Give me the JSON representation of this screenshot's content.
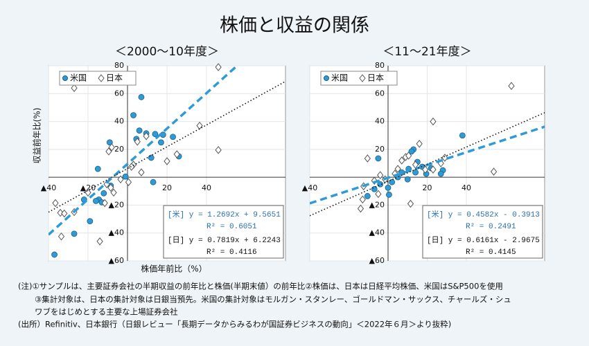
{
  "title": "株価と収益の関係",
  "notes": [
    "(注)①サンプルは、主要証券会社の半期収益の前年比と株価(半期末値）の前年比②株価は、日本は日経平均株価、米国はS&P500を使用",
    "③集計対象は、日本の集計対象は日銀当預先。米国の集計対象はモルガン・スタンレー、ゴールドマン・サックス、チャールズ・シュ",
    "ワブをはじめとする主要な上場証券会社",
    "(出所）Refinitiv、日本銀行（日銀レビュー「長期データからみるわが国証券ビジネスの動向」＜2022年６月＞より抜粋)"
  ],
  "chart_data": [
    {
      "type": "scatter",
      "title": "＜2000〜10年度＞",
      "x_label": "株価年前比（%）",
      "y_label": "収益前年比(%)",
      "grid": true,
      "xlim": [
        -40,
        80
      ],
      "ylim": [
        -60,
        80
      ],
      "xticks": [
        {
          "value": -40,
          "label": "▲40"
        },
        {
          "value": -20,
          "label": "▲20"
        },
        20,
        40
      ],
      "yticks": [
        {
          "value": -60,
          "label": "▲60"
        },
        {
          "value": -40,
          "label": "▲40"
        },
        {
          "value": -20,
          "label": "▲20"
        },
        20,
        40,
        60,
        80
      ],
      "series": [
        {
          "name": "米国",
          "color": "#2e9bd6",
          "marker": "circle",
          "x": [
            7,
            3,
            6,
            -9,
            9.5,
            14,
            17,
            23,
            4.5,
            18,
            26,
            -15,
            -1,
            12,
            13,
            -14.5,
            -13,
            -22,
            -19,
            -27,
            -37,
            -8.5,
            -12,
            -16
          ],
          "values": [
            57.5,
            44.5,
            33.5,
            25,
            31.5,
            31,
            25,
            29,
            27.5,
            30.5,
            15,
            6,
            0.5,
            14,
            -3.5,
            -16,
            -18,
            -16,
            -31.5,
            -40.5,
            -55.5,
            -6,
            -11.5,
            -17
          ],
          "trend": {
            "slope": 1.2692,
            "intercept": 9.5651,
            "style": "dashed",
            "equation": "[米] y = 1.2692x + 9.5651",
            "r2": "R² = 0.6051"
          }
        },
        {
          "name": "日本",
          "color": "#ffffff",
          "marker": "diamond",
          "x": [
            -27,
            46,
            46,
            36.5,
            25,
            20,
            9.5,
            5,
            -9.5,
            -8,
            3,
            7,
            2,
            0.5,
            -8.5,
            -10.5,
            -20,
            -11.5,
            -36.5,
            -34,
            -27,
            -32,
            -33.5,
            -14,
            -7,
            -3.5
          ],
          "values": [
            64,
            79,
            19.5,
            37,
            16.5,
            11.5,
            29.5,
            25.5,
            18.5,
            21.5,
            9,
            3.5,
            7.5,
            -3.5,
            -7.5,
            -5,
            -11,
            -18.5,
            -18.5,
            -25.5,
            -25,
            -26,
            -42.5,
            -46,
            -11,
            -1.5
          ],
          "trend": {
            "slope": 0.7819,
            "intercept": 6.2243,
            "style": "dotted",
            "equation": "[日] y = 0.7819x + 6.2243",
            "r2": "R² = 0.4116"
          }
        }
      ]
    },
    {
      "type": "scatter",
      "title": "＜11〜21年度＞",
      "grid": true,
      "xlim": [
        -40,
        80
      ],
      "ylim": [
        -60,
        80
      ],
      "xticks": [
        {
          "value": -40,
          "label": "▲40"
        },
        20,
        40
      ],
      "yticks": [
        {
          "value": -60,
          "label": "▲60"
        },
        {
          "value": -40,
          "label": "▲40"
        },
        {
          "value": -20,
          "label": "▲20"
        },
        20,
        40,
        60,
        80
      ],
      "series": [
        {
          "name": "米国",
          "color": "#2e9bd6",
          "marker": "circle",
          "x": [
            -5,
            13,
            12,
            15,
            38,
            7,
            10.5,
            17.5,
            14,
            28,
            19.5,
            5,
            2,
            0,
            -4,
            -7,
            -10.5,
            0.5,
            22,
            27,
            10
          ],
          "values": [
            13.5,
            20,
            18.5,
            11,
            30,
            3.5,
            6,
            7.5,
            3.5,
            5,
            2.5,
            0,
            -3.5,
            -7.5,
            -5,
            -8.5,
            -13.5,
            -12.5,
            6.5,
            2.5,
            -1.5
          ],
          "trend": {
            "slope": 0.4582,
            "intercept": -0.3913,
            "style": "dashed",
            "equation": "[米] y = 0.4582x - 0.3913",
            "r2": "R² = 0.2491"
          }
        },
        {
          "name": "日本",
          "color": "#ffffff",
          "marker": "diamond",
          "x": [
            63,
            23,
            54,
            -10.5,
            16,
            7,
            9,
            10.5,
            27,
            29,
            5,
            3.5,
            -1.5,
            -4,
            -7,
            -12.5,
            -5,
            11.5,
            -13,
            -14,
            19,
            14,
            23
          ],
          "values": [
            65.5,
            40,
            4,
            13.5,
            24,
            12,
            14.5,
            15.5,
            10,
            14,
            6,
            2.5,
            -1.5,
            1.5,
            -2.5,
            -6.5,
            -12,
            -19,
            -16,
            -22.5,
            5.5,
            9,
            5.5
          ],
          "trend": {
            "slope": 0.6161,
            "intercept": -2.9675,
            "style": "dotted",
            "equation": "[日] y = 0.6161x - 2.9675",
            "r2": "R² = 0.4145"
          }
        }
      ]
    }
  ]
}
